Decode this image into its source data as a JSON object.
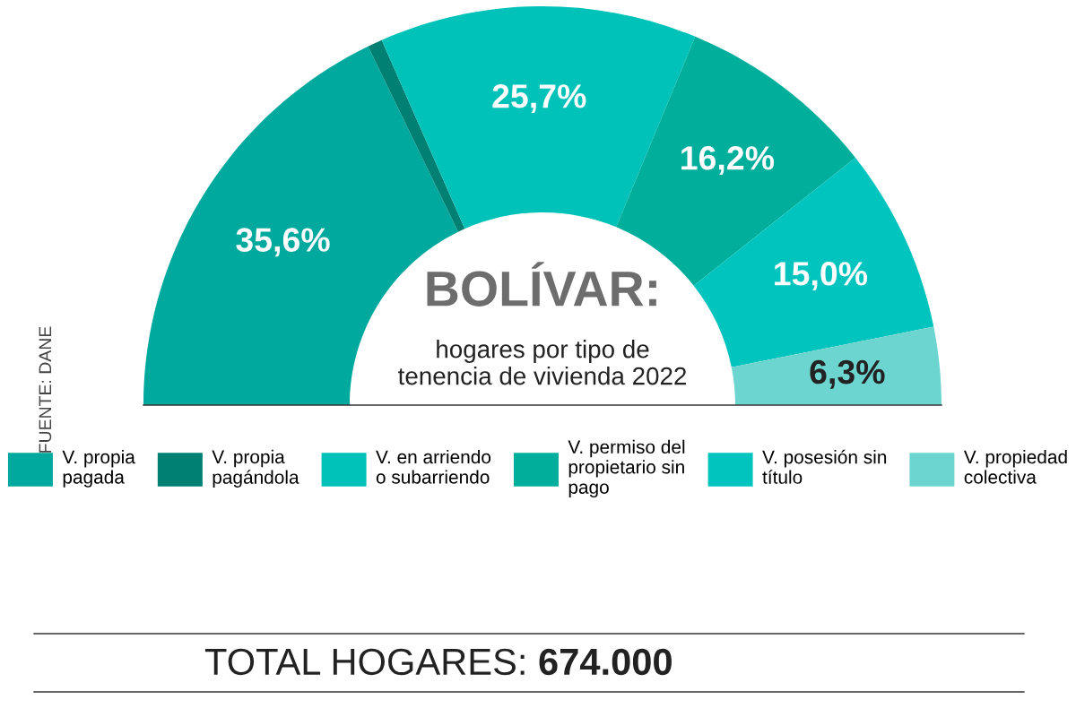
{
  "chart_data": {
    "type": "donut",
    "title": "BOLÍVAR:",
    "subtitle": "hogares por tipo de tenencia de vivienda 2022",
    "categories": [
      "V. propia pagada",
      "V. propia pagándola",
      "V. en arriendo o subarriendo",
      "V. permiso del propietario sin pago",
      "V. posesión sin título",
      "V. propiedad colectiva"
    ],
    "values": [
      35.6,
      1.2,
      25.7,
      16.2,
      15.0,
      6.3
    ],
    "value_labels": [
      "35,6%",
      null,
      "25,7%",
      "16,2%",
      "15,0%",
      "6,3%"
    ],
    "colors": [
      "#00a99d",
      "#007f73",
      "#00c2b8",
      "#00ae9c",
      "#00c4bd",
      "#6dd5cf"
    ],
    "legend": "bottom",
    "annotations": [
      "FUENTE: DANE",
      "TOTAL HOGARES: 674.000"
    ]
  }
}
